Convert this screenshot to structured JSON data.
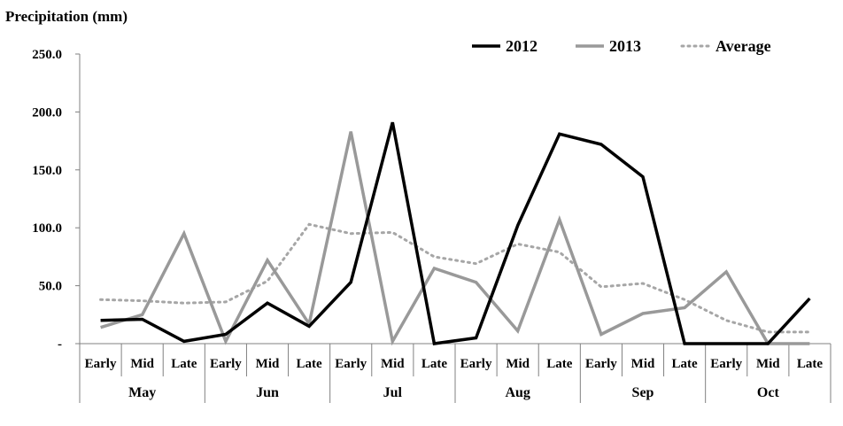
{
  "chart_data": {
    "type": "line",
    "ylabel": "Precipitation  (mm)",
    "yticks": [
      "250.0",
      "200.0",
      "150.0",
      "100.0",
      "50.0",
      "-"
    ],
    "ylim": [
      0,
      250
    ],
    "categories": [
      "Early",
      "Mid",
      "Late",
      "Early",
      "Mid",
      "Late",
      "Early",
      "Mid",
      "Late",
      "Early",
      "Mid",
      "Late",
      "Early",
      "Mid",
      "Late",
      "Early",
      "Mid",
      "Late"
    ],
    "groups": [
      "May",
      "Jun",
      "Jul",
      "Aug",
      "Sep",
      "Oct"
    ],
    "legend_position": "top-right",
    "series": [
      {
        "name": "2012",
        "color": "#000000",
        "style": "solid",
        "values": [
          20,
          21,
          2,
          8,
          35,
          15,
          53,
          191,
          0,
          5,
          102,
          181,
          172,
          144,
          0,
          0,
          0,
          39
        ]
      },
      {
        "name": "2013",
        "color": "#999999",
        "style": "solid",
        "values": [
          14,
          25,
          95,
          2,
          72,
          17,
          183,
          2,
          65,
          53,
          11,
          107,
          8,
          26,
          31,
          62,
          0,
          0
        ]
      },
      {
        "name": "Average",
        "color": "#a6a6a6",
        "style": "dotted",
        "values": [
          38,
          37,
          35,
          36,
          54,
          103,
          95,
          96,
          75,
          69,
          86,
          79,
          49,
          52,
          38,
          20,
          10,
          10
        ]
      }
    ]
  }
}
